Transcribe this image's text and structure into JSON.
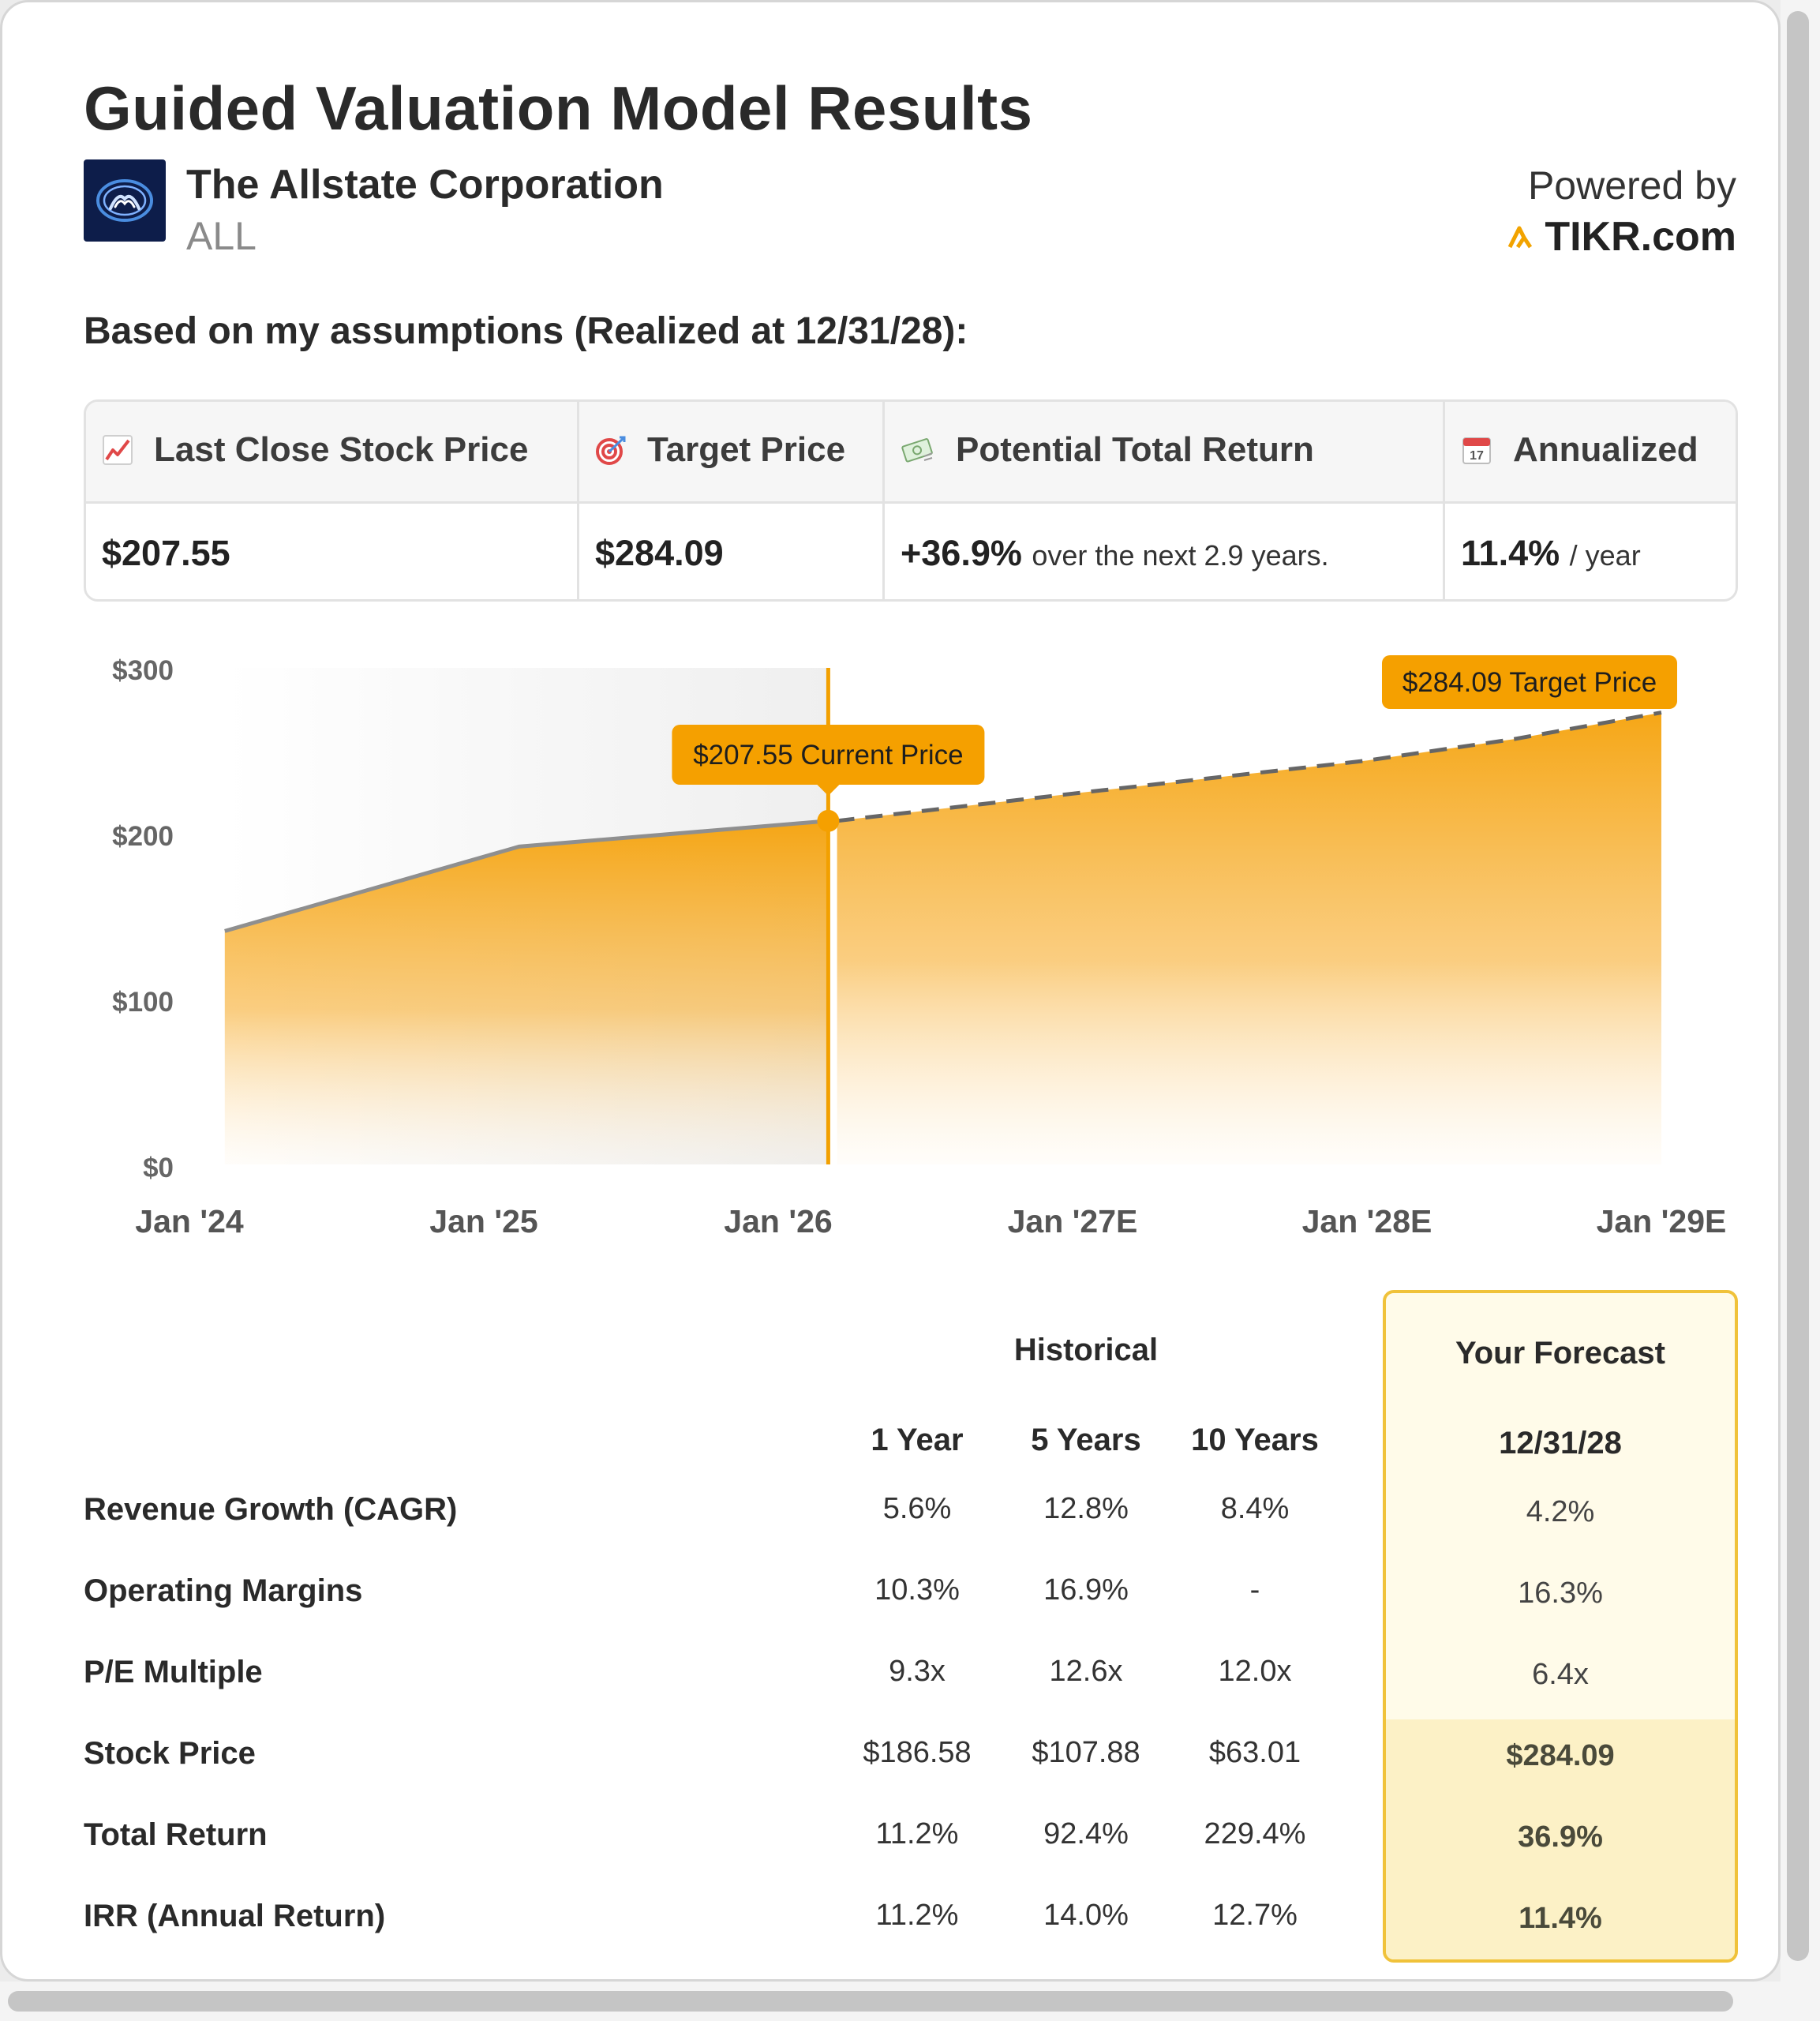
{
  "header": {
    "title": "Guided Valuation Model Results",
    "company_name": "The Allstate Corporation",
    "ticker": "ALL",
    "powered_by": "Powered by",
    "brand": "TIKR.com"
  },
  "assumptions_heading": "Based on my assumptions (Realized at 12/31/28):",
  "summary": {
    "columns": [
      {
        "icon": "chart-up-icon",
        "label": "Last Close Stock Price",
        "value": "$207.55",
        "suffix": ""
      },
      {
        "icon": "target-icon",
        "label": "Target Price",
        "value": "$284.09",
        "suffix": ""
      },
      {
        "icon": "money-icon",
        "label": "Potential Total Return",
        "value": "+36.9%",
        "suffix": "over the next 2.9 years."
      },
      {
        "icon": "calendar-icon",
        "label": "Annualized",
        "value": "11.4%",
        "suffix": "/ year"
      }
    ],
    "calendar_day": "17"
  },
  "chart_data": {
    "type": "area",
    "y_ticks": [
      "$300",
      "$200",
      "$100",
      "$0"
    ],
    "ylim": [
      0,
      300
    ],
    "x_ticks": [
      "Jan '24",
      "Jan '25",
      "Jan '26",
      "Jan '27E",
      "Jan '28E",
      "Jan '29E"
    ],
    "historical": [
      {
        "x": 2024.12,
        "y": 141
      },
      {
        "x": 2025.12,
        "y": 192
      },
      {
        "x": 2026.17,
        "y": 207.55
      }
    ],
    "forecast": [
      {
        "x": 2026.2,
        "y": 207.55
      },
      {
        "x": 2027.0,
        "y": 224
      },
      {
        "x": 2028.0,
        "y": 244
      },
      {
        "x": 2028.5,
        "y": 257
      },
      {
        "x": 2029.0,
        "y": 273
      }
    ],
    "current_label": "$207.55 Current Price",
    "target_label": "$284.09 Target Price",
    "accent": "#f5a000"
  },
  "table": {
    "historical_title": "Historical",
    "forecast_title": "Your Forecast",
    "columns": [
      "1 Year",
      "5 Years",
      "10 Years"
    ],
    "forecast_column": "12/31/28",
    "rows": [
      {
        "label": "Revenue Growth (CAGR)",
        "values": [
          "5.6%",
          "12.8%",
          "8.4%"
        ],
        "forecast": "4.2%"
      },
      {
        "label": "Operating Margins",
        "values": [
          "10.3%",
          "16.9%",
          "-"
        ],
        "forecast": "16.3%"
      },
      {
        "label": "P/E Multiple",
        "values": [
          "9.3x",
          "12.6x",
          "12.0x"
        ],
        "forecast": "6.4x"
      },
      {
        "label": "Stock Price",
        "values": [
          "$186.58",
          "$107.88",
          "$63.01"
        ],
        "forecast": "$284.09"
      },
      {
        "label": "Total Return",
        "values": [
          "11.2%",
          "92.4%",
          "229.4%"
        ],
        "forecast": "36.9%"
      },
      {
        "label": "IRR (Annual Return)",
        "values": [
          "11.2%",
          "14.0%",
          "12.7%"
        ],
        "forecast": "11.4%"
      }
    ]
  }
}
